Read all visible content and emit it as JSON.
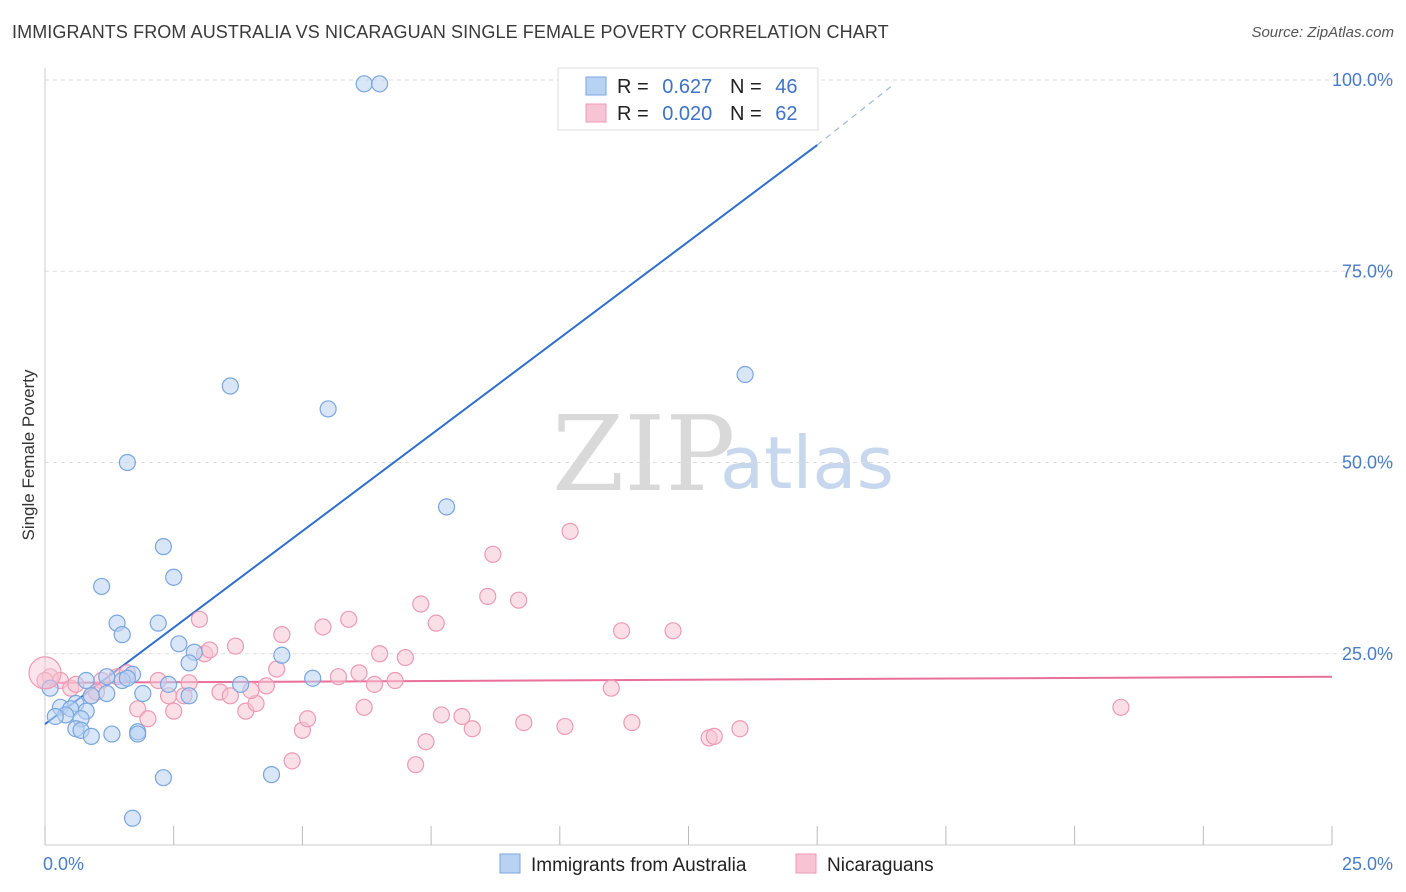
{
  "title": "IMMIGRANTS FROM AUSTRALIA VS NICARAGUAN SINGLE FEMALE POVERTY CORRELATION CHART",
  "source": "Source: ZipAtlas.com",
  "watermark": {
    "zip": "ZIP",
    "atlas": "atlas"
  },
  "colors": {
    "blue_fill": "#b8d2f3",
    "blue_stroke": "#7aa6df",
    "blue_line": "#2f6fcc",
    "pink_fill": "#f7c4d4",
    "pink_stroke": "#ec9ab6",
    "pink_line": "#e8709a",
    "grid": "#dddddd",
    "axis_text": "#4a7cc7"
  },
  "chart_data": {
    "type": "scatter",
    "title": "IMMIGRANTS FROM AUSTRALIA VS NICARAGUAN SINGLE FEMALE POVERTY CORRELATION CHART",
    "xlabel": "",
    "ylabel": "Single Female Poverty",
    "xlim": [
      0,
      25
    ],
    "ylim": [
      0,
      100
    ],
    "x_ticks": [
      {
        "value": 0,
        "label": "0.0%"
      },
      {
        "value": 25,
        "label": "25.0%"
      }
    ],
    "y_ticks": [
      {
        "value": 25,
        "label": "25.0%"
      },
      {
        "value": 50,
        "label": "50.0%"
      },
      {
        "value": 75,
        "label": "75.0%"
      },
      {
        "value": 100,
        "label": "100.0%"
      }
    ],
    "legend": [
      {
        "series": "Immigrants from Australia",
        "r_label": "R =",
        "r_value": "0.627",
        "n_label": "N =",
        "n_value": "46"
      },
      {
        "series": "Nicaraguans",
        "r_label": "R =",
        "r_value": "0.020",
        "n_label": "N =",
        "n_value": "62"
      }
    ],
    "series": [
      {
        "name": "Immigrants from Australia",
        "color": "blue",
        "trend": {
          "x0": 0,
          "y0": 15.8,
          "x1": 15,
          "y1": 91.5,
          "dash_x1": 16.5,
          "dash_y1": 99.5
        },
        "points": [
          [
            6.2,
            99.5
          ],
          [
            6.5,
            99.5
          ],
          [
            13.6,
            61.5
          ],
          [
            3.6,
            60
          ],
          [
            5.5,
            57
          ],
          [
            1.6,
            50
          ],
          [
            7.8,
            44.2
          ],
          [
            2.3,
            39
          ],
          [
            2.5,
            35
          ],
          [
            1.1,
            33.8
          ],
          [
            1.4,
            29
          ],
          [
            2.2,
            29
          ],
          [
            1.5,
            27.5
          ],
          [
            2.6,
            26.3
          ],
          [
            2.9,
            25.2
          ],
          [
            2.8,
            23.8
          ],
          [
            4.6,
            24.8
          ],
          [
            1.7,
            22.3
          ],
          [
            1.2,
            22
          ],
          [
            1.5,
            21.5
          ],
          [
            1.6,
            21.8
          ],
          [
            3.8,
            21
          ],
          [
            5.2,
            21.8
          ],
          [
            2.4,
            21
          ],
          [
            0.8,
            21.5
          ],
          [
            0.1,
            20.5
          ],
          [
            1.9,
            19.8
          ],
          [
            2.8,
            19.5
          ],
          [
            0.9,
            19.5
          ],
          [
            1.2,
            19.8
          ],
          [
            0.6,
            18.5
          ],
          [
            0.3,
            18
          ],
          [
            0.5,
            17.8
          ],
          [
            0.8,
            17.5
          ],
          [
            0.4,
            17
          ],
          [
            0.2,
            16.8
          ],
          [
            0.7,
            16.5
          ],
          [
            0.6,
            15.2
          ],
          [
            0.7,
            15
          ],
          [
            1.3,
            14.5
          ],
          [
            0.9,
            14.2
          ],
          [
            1.8,
            14.8
          ],
          [
            1.8,
            14.5
          ],
          [
            4.4,
            9.2
          ],
          [
            2.3,
            8.8
          ],
          [
            1.7,
            3.5
          ]
        ]
      },
      {
        "name": "Nicaraguans",
        "color": "pink",
        "trend": {
          "x0": 0,
          "y0": 21.2,
          "x1": 25,
          "y1": 22
        },
        "points": [
          [
            0.1,
            22
          ],
          [
            0.3,
            21.5
          ],
          [
            0.5,
            20.5
          ],
          [
            0.6,
            21
          ],
          [
            0.9,
            19.5
          ],
          [
            1.1,
            21.5
          ],
          [
            1.4,
            22
          ],
          [
            1.6,
            22.5
          ],
          [
            1.8,
            17.8
          ],
          [
            2.0,
            16.5
          ],
          [
            2.2,
            21.5
          ],
          [
            2.4,
            19.5
          ],
          [
            2.5,
            17.5
          ],
          [
            2.7,
            19.5
          ],
          [
            3.0,
            29.5
          ],
          [
            3.1,
            25
          ],
          [
            3.2,
            25.5
          ],
          [
            3.4,
            20
          ],
          [
            3.6,
            19.5
          ],
          [
            3.7,
            26
          ],
          [
            3.9,
            17.5
          ],
          [
            4.1,
            18.5
          ],
          [
            4.3,
            20.8
          ],
          [
            4.5,
            23
          ],
          [
            4.6,
            27.5
          ],
          [
            4.8,
            11
          ],
          [
            5.0,
            15
          ],
          [
            5.1,
            16.5
          ],
          [
            5.4,
            28.5
          ],
          [
            5.7,
            22
          ],
          [
            5.9,
            29.5
          ],
          [
            6.1,
            22.5
          ],
          [
            6.2,
            18
          ],
          [
            6.4,
            21
          ],
          [
            6.5,
            25
          ],
          [
            6.8,
            21.5
          ],
          [
            7.0,
            24.5
          ],
          [
            7.2,
            10.5
          ],
          [
            7.3,
            31.5
          ],
          [
            7.4,
            13.5
          ],
          [
            7.6,
            29
          ],
          [
            7.7,
            17
          ],
          [
            8.1,
            16.8
          ],
          [
            8.3,
            15.2
          ],
          [
            8.7,
            38
          ],
          [
            8.6,
            32.5
          ],
          [
            9.2,
            32
          ],
          [
            9.3,
            16
          ],
          [
            10.2,
            41
          ],
          [
            10.1,
            15.5
          ],
          [
            11.0,
            20.5
          ],
          [
            11.2,
            28
          ],
          [
            11.4,
            16
          ],
          [
            12.2,
            28
          ],
          [
            12.9,
            14
          ],
          [
            13.0,
            14.2
          ],
          [
            13.5,
            15.2
          ],
          [
            20.9,
            18
          ],
          [
            0.0,
            21.5
          ],
          [
            1.0,
            20
          ],
          [
            2.8,
            21.2
          ],
          [
            4.0,
            20.2
          ]
        ]
      }
    ]
  }
}
